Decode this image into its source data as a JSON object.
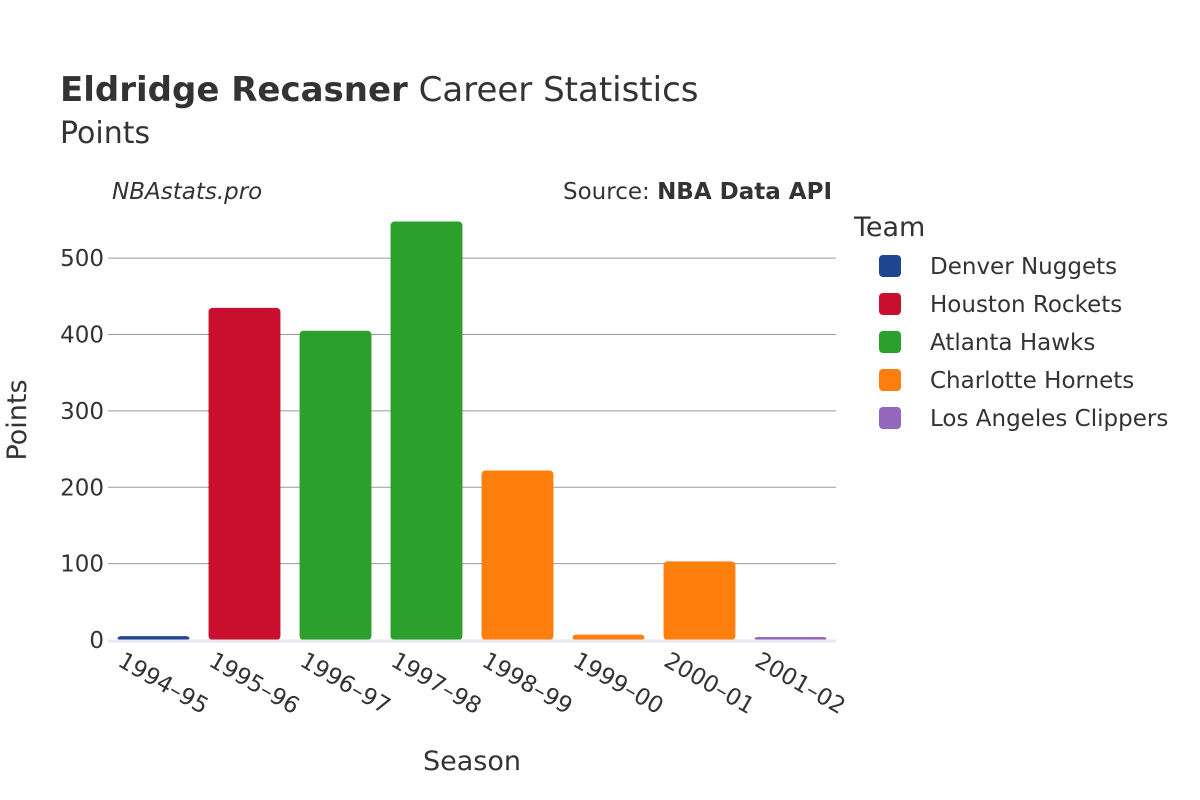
{
  "header": {
    "player": "Eldridge Recasner",
    "title_rest": " Career Statistics",
    "subtitle": "Points"
  },
  "watermark": "NBAstats.pro",
  "source": {
    "prefix": "Source: ",
    "name": "NBA Data API"
  },
  "legend": {
    "title": "Team",
    "items": [
      {
        "name": "Denver Nuggets",
        "color": "#1f4690"
      },
      {
        "name": "Houston Rockets",
        "color": "#c8102e"
      },
      {
        "name": "Atlanta Hawks",
        "color": "#2ca02c"
      },
      {
        "name": "Charlotte Hornets",
        "color": "#ff7f0e"
      },
      {
        "name": "Los Angeles Clippers",
        "color": "#9467bd"
      }
    ]
  },
  "chart_data": {
    "type": "bar",
    "xlabel": "Season",
    "ylabel": "Points",
    "ylim": [
      0,
      550
    ],
    "yticks": [
      0,
      100,
      200,
      300,
      400,
      500
    ],
    "grid": true,
    "legend_position": "right",
    "categories": [
      "1994–95",
      "1995–96",
      "1996–97",
      "1997–98",
      "1998–99",
      "1999–00",
      "2000–01",
      "2001–02"
    ],
    "values": [
      5,
      435,
      405,
      548,
      222,
      7,
      103,
      4
    ],
    "teams": [
      "Denver Nuggets",
      "Houston Rockets",
      "Atlanta Hawks",
      "Atlanta Hawks",
      "Charlotte Hornets",
      "Charlotte Hornets",
      "Charlotte Hornets",
      "Los Angeles Clippers"
    ]
  }
}
